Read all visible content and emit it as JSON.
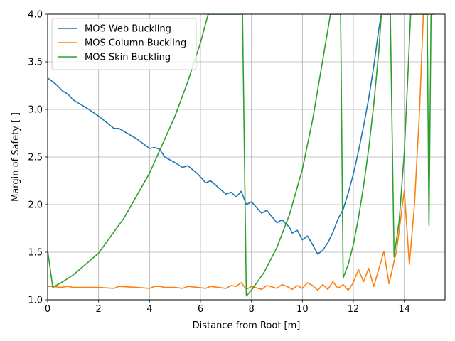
{
  "chart_data": {
    "type": "line",
    "title": "",
    "xlabel": "Distance from Root [m]",
    "ylabel": "Margin of Safety [-]",
    "xlim": [
      0,
      15.6
    ],
    "ylim": [
      1.0,
      4.0
    ],
    "xticks": [
      0,
      2,
      4,
      6,
      8,
      10,
      12,
      14
    ],
    "xtick_labels": [
      "0",
      "2",
      "4",
      "6",
      "8",
      "10",
      "12",
      "14"
    ],
    "yticks": [
      1.0,
      1.5,
      2.0,
      2.5,
      3.0,
      3.5,
      4.0
    ],
    "ytick_labels": [
      "1.0",
      "1.5",
      "2.0",
      "2.5",
      "3.0",
      "3.5",
      "4.0"
    ],
    "grid": true,
    "legend_position": "top-left",
    "series": [
      {
        "name": "MOS Web Buckling",
        "color": "#1f77b4",
        "points": [
          [
            0.0,
            3.33
          ],
          [
            0.3,
            3.27
          ],
          [
            0.6,
            3.19
          ],
          [
            0.8,
            3.16
          ],
          [
            1.0,
            3.1
          ],
          [
            1.5,
            3.02
          ],
          [
            2.0,
            2.93
          ],
          [
            2.6,
            2.8
          ],
          [
            2.8,
            2.8
          ],
          [
            3.5,
            2.69
          ],
          [
            4.0,
            2.59
          ],
          [
            4.2,
            2.6
          ],
          [
            4.4,
            2.58
          ],
          [
            4.6,
            2.5
          ],
          [
            5.0,
            2.44
          ],
          [
            5.3,
            2.39
          ],
          [
            5.5,
            2.41
          ],
          [
            5.9,
            2.32
          ],
          [
            6.2,
            2.23
          ],
          [
            6.4,
            2.25
          ],
          [
            6.7,
            2.18
          ],
          [
            7.0,
            2.11
          ],
          [
            7.2,
            2.13
          ],
          [
            7.4,
            2.08
          ],
          [
            7.6,
            2.14
          ],
          [
            7.8,
            2.0
          ],
          [
            8.0,
            2.03
          ],
          [
            8.4,
            1.91
          ],
          [
            8.6,
            1.94
          ],
          [
            9.0,
            1.81
          ],
          [
            9.2,
            1.84
          ],
          [
            9.5,
            1.76
          ],
          [
            9.6,
            1.7
          ],
          [
            9.8,
            1.73
          ],
          [
            10.0,
            1.63
          ],
          [
            10.2,
            1.67
          ],
          [
            10.4,
            1.58
          ],
          [
            10.6,
            1.48
          ],
          [
            10.8,
            1.52
          ],
          [
            11.0,
            1.6
          ],
          [
            11.2,
            1.71
          ],
          [
            11.4,
            1.85
          ],
          [
            11.6,
            1.95
          ],
          [
            11.8,
            2.12
          ],
          [
            12.0,
            2.32
          ],
          [
            12.2,
            2.56
          ],
          [
            12.4,
            2.82
          ],
          [
            12.6,
            3.11
          ],
          [
            12.8,
            3.45
          ],
          [
            13.0,
            3.84
          ],
          [
            13.1,
            4.0
          ]
        ]
      },
      {
        "name": "MOS Column Buckling",
        "color": "#ff7f0e",
        "points": [
          [
            0.0,
            1.14
          ],
          [
            0.2,
            1.14
          ],
          [
            0.5,
            1.13
          ],
          [
            0.8,
            1.14
          ],
          [
            1.0,
            1.13
          ],
          [
            2.0,
            1.13
          ],
          [
            2.6,
            1.12
          ],
          [
            2.8,
            1.14
          ],
          [
            3.5,
            1.13
          ],
          [
            4.0,
            1.12
          ],
          [
            4.2,
            1.14
          ],
          [
            4.4,
            1.14
          ],
          [
            4.6,
            1.13
          ],
          [
            5.0,
            1.13
          ],
          [
            5.3,
            1.12
          ],
          [
            5.5,
            1.14
          ],
          [
            5.9,
            1.13
          ],
          [
            6.2,
            1.12
          ],
          [
            6.4,
            1.14
          ],
          [
            6.7,
            1.13
          ],
          [
            7.0,
            1.12
          ],
          [
            7.2,
            1.15
          ],
          [
            7.4,
            1.14
          ],
          [
            7.6,
            1.18
          ],
          [
            7.8,
            1.11
          ],
          [
            8.0,
            1.14
          ],
          [
            8.4,
            1.11
          ],
          [
            8.6,
            1.15
          ],
          [
            9.0,
            1.12
          ],
          [
            9.2,
            1.16
          ],
          [
            9.4,
            1.14
          ],
          [
            9.6,
            1.11
          ],
          [
            9.8,
            1.15
          ],
          [
            10.0,
            1.12
          ],
          [
            10.2,
            1.18
          ],
          [
            10.4,
            1.15
          ],
          [
            10.6,
            1.1
          ],
          [
            10.8,
            1.16
          ],
          [
            11.0,
            1.11
          ],
          [
            11.2,
            1.19
          ],
          [
            11.4,
            1.12
          ],
          [
            11.6,
            1.16
          ],
          [
            11.8,
            1.1
          ],
          [
            12.0,
            1.18
          ],
          [
            12.2,
            1.32
          ],
          [
            12.4,
            1.19
          ],
          [
            12.6,
            1.33
          ],
          [
            12.8,
            1.14
          ],
          [
            13.0,
            1.32
          ],
          [
            13.2,
            1.51
          ],
          [
            13.4,
            1.17
          ],
          [
            13.7,
            1.52
          ],
          [
            14.0,
            2.15
          ],
          [
            14.2,
            1.37
          ],
          [
            14.4,
            2.0
          ],
          [
            14.6,
            3.0
          ],
          [
            14.75,
            4.0
          ],
          [
            15.0,
            4.0
          ]
        ]
      },
      {
        "name": "MOS Skin Buckling",
        "color": "#2ca02c",
        "points": [
          [
            0.0,
            1.52
          ],
          [
            0.2,
            1.13
          ],
          [
            0.6,
            1.19
          ],
          [
            1.0,
            1.26
          ],
          [
            2.0,
            1.49
          ],
          [
            3.0,
            1.86
          ],
          [
            4.0,
            2.33
          ],
          [
            5.0,
            2.93
          ],
          [
            5.5,
            3.29
          ],
          [
            6.0,
            3.7
          ],
          [
            6.3,
            4.0
          ],
          [
            7.65,
            4.0
          ],
          [
            7.8,
            1.04
          ],
          [
            8.0,
            1.1
          ],
          [
            8.5,
            1.29
          ],
          [
            9.0,
            1.55
          ],
          [
            9.5,
            1.9
          ],
          [
            10.0,
            2.37
          ],
          [
            10.4,
            2.89
          ],
          [
            10.8,
            3.52
          ],
          [
            11.1,
            4.0
          ],
          [
            11.5,
            4.0
          ],
          [
            11.6,
            1.23
          ],
          [
            11.8,
            1.37
          ],
          [
            12.0,
            1.58
          ],
          [
            12.2,
            1.86
          ],
          [
            12.4,
            2.19
          ],
          [
            12.6,
            2.58
          ],
          [
            12.8,
            3.05
          ],
          [
            13.0,
            3.61
          ],
          [
            13.1,
            4.0
          ],
          [
            13.45,
            4.0
          ],
          [
            13.6,
            1.45
          ],
          [
            13.8,
            1.83
          ],
          [
            14.0,
            2.55
          ],
          [
            14.15,
            3.4
          ],
          [
            14.25,
            4.0
          ],
          [
            14.9,
            4.0
          ],
          [
            14.97,
            1.78
          ],
          [
            15.05,
            4.0
          ],
          [
            15.2,
            4.0
          ]
        ]
      }
    ]
  }
}
